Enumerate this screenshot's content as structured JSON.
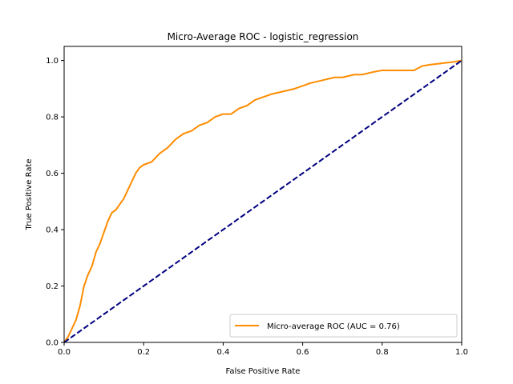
{
  "chart_data": {
    "type": "line",
    "title": "Micro-Average ROC - logistic_regression",
    "xlabel": "False Positive Rate",
    "ylabel": "True Positive Rate",
    "xlim": [
      0.0,
      1.0
    ],
    "ylim": [
      0.0,
      1.05
    ],
    "xticks": [
      0.0,
      0.2,
      0.4,
      0.6,
      0.8,
      1.0
    ],
    "yticks": [
      0.0,
      0.2,
      0.4,
      0.6,
      0.8,
      1.0
    ],
    "xtick_labels": [
      "0.0",
      "0.2",
      "0.4",
      "0.6",
      "0.8",
      "1.0"
    ],
    "ytick_labels": [
      "0.0",
      "0.2",
      "0.4",
      "0.6",
      "0.8",
      "1.0"
    ],
    "grid": false,
    "legend_position": "lower-right",
    "series": [
      {
        "name": "Micro-average ROC (AUC = 0.76)",
        "color": "#ff8c00",
        "style": "solid",
        "x": [
          0.0,
          0.01,
          0.02,
          0.03,
          0.04,
          0.05,
          0.06,
          0.07,
          0.08,
          0.09,
          0.1,
          0.11,
          0.12,
          0.13,
          0.14,
          0.15,
          0.16,
          0.17,
          0.18,
          0.19,
          0.2,
          0.22,
          0.24,
          0.26,
          0.28,
          0.3,
          0.32,
          0.34,
          0.36,
          0.38,
          0.4,
          0.42,
          0.44,
          0.46,
          0.48,
          0.5,
          0.52,
          0.55,
          0.58,
          0.6,
          0.62,
          0.65,
          0.68,
          0.7,
          0.73,
          0.75,
          0.78,
          0.8,
          0.83,
          0.85,
          0.88,
          0.9,
          0.92,
          0.95,
          0.98,
          1.0
        ],
        "y": [
          0.0,
          0.02,
          0.05,
          0.08,
          0.13,
          0.2,
          0.24,
          0.27,
          0.32,
          0.35,
          0.39,
          0.43,
          0.46,
          0.47,
          0.49,
          0.51,
          0.54,
          0.57,
          0.6,
          0.62,
          0.63,
          0.64,
          0.67,
          0.69,
          0.72,
          0.74,
          0.75,
          0.77,
          0.78,
          0.8,
          0.81,
          0.81,
          0.83,
          0.84,
          0.86,
          0.87,
          0.88,
          0.89,
          0.9,
          0.91,
          0.92,
          0.93,
          0.94,
          0.94,
          0.95,
          0.95,
          0.96,
          0.965,
          0.965,
          0.965,
          0.965,
          0.98,
          0.985,
          0.99,
          0.995,
          1.0
        ]
      },
      {
        "name": "",
        "color": "#000080",
        "style": "dashed",
        "x": [
          0.0,
          1.0
        ],
        "y": [
          0.0,
          1.0
        ]
      }
    ]
  }
}
